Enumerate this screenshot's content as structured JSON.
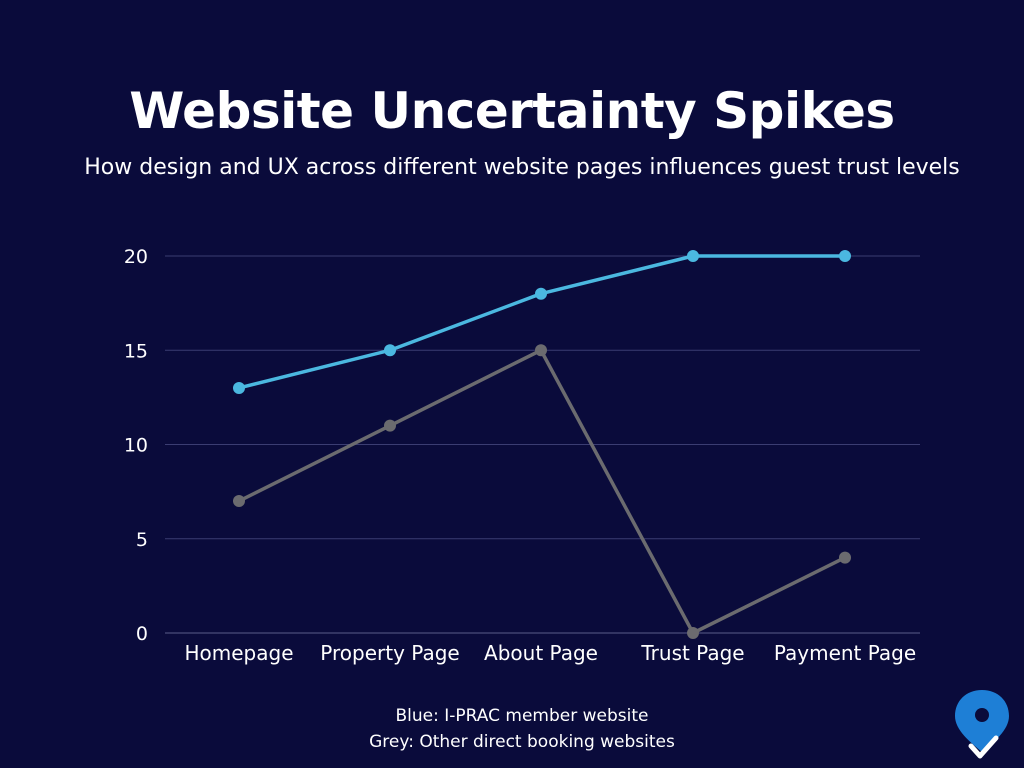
{
  "chart_data": {
    "type": "line",
    "title": "Website Uncertainty Spikes",
    "subtitle": "How design and UX across different website pages influences guest trust levels",
    "categories": [
      "Homepage",
      "Property Page",
      "About Page",
      "Trust Page",
      "Payment Page"
    ],
    "series": [
      {
        "name": "I-PRAC member website",
        "color": "#4bb8e0",
        "values": [
          13,
          15,
          18,
          20,
          20
        ]
      },
      {
        "name": "Other direct booking websites",
        "color": "#6b6b6f",
        "values": [
          7,
          11,
          15,
          0,
          4
        ]
      }
    ],
    "ylim": [
      0,
      20
    ],
    "yticks": [
      0,
      5,
      10,
      15,
      20
    ],
    "xlabel": "",
    "ylabel": "",
    "grid": true,
    "legend_lines": [
      "Blue: I-PRAC  member website",
      "Grey: Other direct booking websites"
    ]
  },
  "colors": {
    "background": "#0a0b3b",
    "grid": "#3b3d72",
    "logo_pin": "#1e7fd6"
  },
  "icons": {
    "logo": "map-pin-check-icon"
  }
}
